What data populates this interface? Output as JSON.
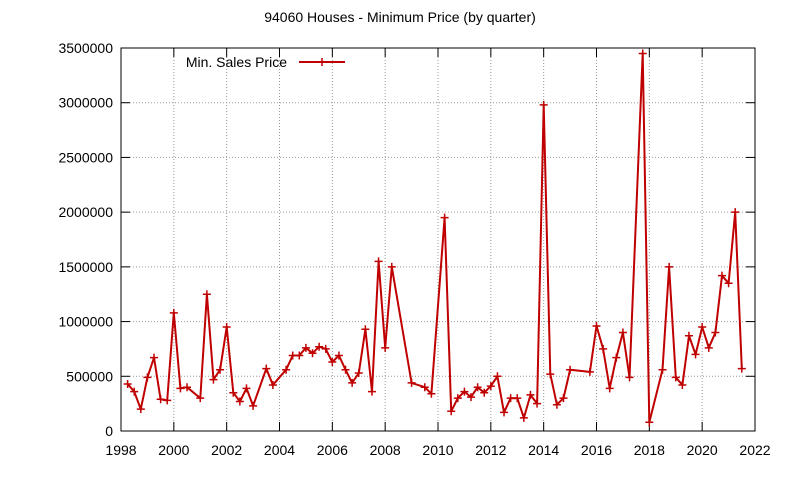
{
  "chart_data": {
    "type": "line",
    "title": "94060 Houses - Minimum Price (by quarter)",
    "xlabel": "",
    "ylabel": "",
    "xlim": [
      1998,
      2022
    ],
    "ylim": [
      0,
      3500000
    ],
    "x_ticks": [
      "1998",
      "2000",
      "2002",
      "2004",
      "2006",
      "2008",
      "2010",
      "2012",
      "2014",
      "2016",
      "2018",
      "2020",
      "2022"
    ],
    "y_ticks": [
      "0",
      "500000",
      "1000000",
      "1500000",
      "2000000",
      "2500000",
      "3000000",
      "3500000"
    ],
    "grid": true,
    "legend_position": "top-left",
    "colors": {
      "series": "#c00000",
      "grid": "#999999",
      "axis": "#000000"
    },
    "series": [
      {
        "name": "Min. Sales Price",
        "points": [
          [
            1998.25,
            430000
          ],
          [
            1998.5,
            360000
          ],
          [
            1998.75,
            200000
          ],
          [
            1999.0,
            490000
          ],
          [
            1999.25,
            670000
          ],
          [
            1999.5,
            290000
          ],
          [
            1999.75,
            280000
          ],
          [
            2000.0,
            1080000
          ],
          [
            2000.25,
            390000
          ],
          [
            2000.5,
            400000
          ],
          [
            2001.0,
            300000
          ],
          [
            2001.25,
            1250000
          ],
          [
            2001.5,
            470000
          ],
          [
            2001.75,
            560000
          ],
          [
            2002.0,
            950000
          ],
          [
            2002.25,
            350000
          ],
          [
            2002.5,
            270000
          ],
          [
            2002.75,
            390000
          ],
          [
            2003.0,
            230000
          ],
          [
            2003.5,
            570000
          ],
          [
            2003.75,
            420000
          ],
          [
            2004.25,
            560000
          ],
          [
            2004.5,
            690000
          ],
          [
            2004.75,
            690000
          ],
          [
            2005.0,
            760000
          ],
          [
            2005.25,
            710000
          ],
          [
            2005.5,
            770000
          ],
          [
            2005.75,
            750000
          ],
          [
            2006.0,
            630000
          ],
          [
            2006.25,
            690000
          ],
          [
            2006.5,
            560000
          ],
          [
            2006.75,
            440000
          ],
          [
            2007.0,
            530000
          ],
          [
            2007.25,
            930000
          ],
          [
            2007.5,
            360000
          ],
          [
            2007.75,
            1550000
          ],
          [
            2008.0,
            760000
          ],
          [
            2008.25,
            1500000
          ],
          [
            2009.0,
            440000
          ],
          [
            2009.5,
            400000
          ],
          [
            2009.75,
            340000
          ],
          [
            2010.25,
            1950000
          ],
          [
            2010.5,
            180000
          ],
          [
            2010.75,
            300000
          ],
          [
            2011.0,
            360000
          ],
          [
            2011.25,
            310000
          ],
          [
            2011.5,
            400000
          ],
          [
            2011.75,
            350000
          ],
          [
            2012.0,
            410000
          ],
          [
            2012.25,
            500000
          ],
          [
            2012.5,
            170000
          ],
          [
            2012.75,
            300000
          ],
          [
            2013.0,
            300000
          ],
          [
            2013.25,
            120000
          ],
          [
            2013.5,
            330000
          ],
          [
            2013.75,
            250000
          ],
          [
            2014.0,
            2980000
          ],
          [
            2014.25,
            520000
          ],
          [
            2014.5,
            240000
          ],
          [
            2014.75,
            300000
          ],
          [
            2015.0,
            560000
          ],
          [
            2015.75,
            540000
          ],
          [
            2016.0,
            960000
          ],
          [
            2016.25,
            750000
          ],
          [
            2016.5,
            390000
          ],
          [
            2016.75,
            670000
          ],
          [
            2017.0,
            900000
          ],
          [
            2017.25,
            490000
          ],
          [
            2017.75,
            3450000
          ],
          [
            2018.0,
            80000
          ],
          [
            2018.5,
            560000
          ],
          [
            2018.75,
            1500000
          ],
          [
            2019.0,
            490000
          ],
          [
            2019.25,
            420000
          ],
          [
            2019.5,
            870000
          ],
          [
            2019.75,
            700000
          ],
          [
            2020.0,
            950000
          ],
          [
            2020.25,
            760000
          ],
          [
            2020.5,
            900000
          ],
          [
            2020.75,
            1420000
          ],
          [
            2021.0,
            1350000
          ],
          [
            2021.25,
            2000000
          ],
          [
            2021.5,
            570000
          ]
        ]
      }
    ]
  }
}
